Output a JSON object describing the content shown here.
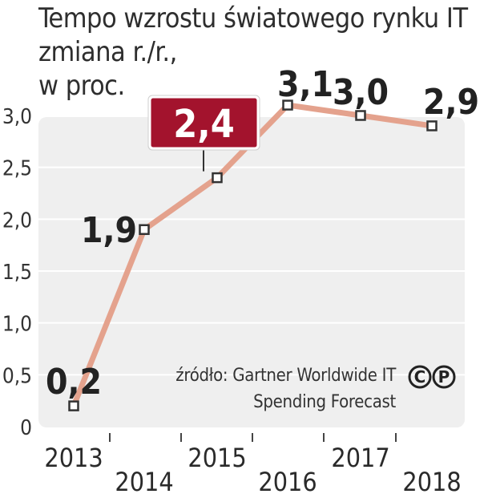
{
  "chart_data": {
    "type": "line",
    "title": "Tempo wzrostu światowego rynku IT",
    "subtitle_lines": [
      "zmiana r./r.,",
      "w proc."
    ],
    "categories": [
      "2013",
      "2014",
      "2015",
      "2016",
      "2017",
      "2018"
    ],
    "series": [
      {
        "values": [
          0.2,
          1.9,
          2.4,
          3.1,
          3.0,
          2.9
        ]
      }
    ],
    "value_labels": [
      "0,2",
      "1,9",
      "2,4",
      "3,1",
      "3,0",
      "2,9"
    ],
    "highlighted_index": 2,
    "yticks": [
      {
        "value": 0,
        "label": "0"
      },
      {
        "value": 0.5,
        "label": "0,5"
      },
      {
        "value": 1.0,
        "label": "1,0"
      },
      {
        "value": 1.5,
        "label": "1,5"
      },
      {
        "value": 2.0,
        "label": "2,0"
      },
      {
        "value": 2.5,
        "label": "2,5"
      },
      {
        "value": 3.0,
        "label": "3,0"
      }
    ],
    "ylim": [
      0,
      3.0
    ],
    "grid": true,
    "colors": {
      "line": "#e4a28d",
      "plot_bg": "#efefef",
      "grid": "#ffffff",
      "highlight_box": "#a3132d",
      "marker_fill": "#ffffff",
      "marker_stroke": "#333333"
    }
  },
  "source": {
    "line1": "źródło: Gartner Worldwide IT",
    "line2": "Spending Forecast"
  },
  "logo": {
    "letters": [
      "C",
      "P"
    ]
  }
}
